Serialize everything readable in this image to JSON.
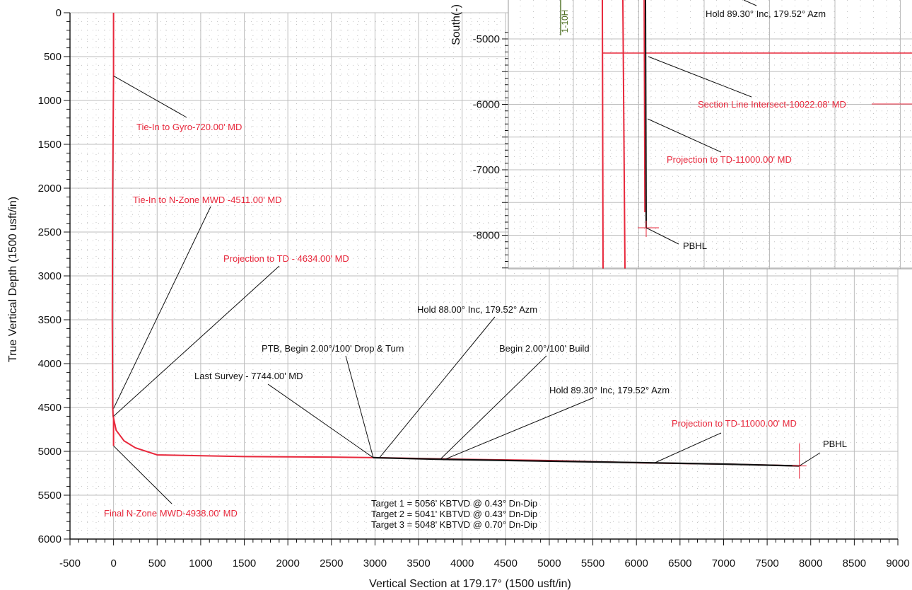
{
  "chart_data": [
    {
      "type": "line",
      "xlabel": "Vertical Section at 179.17° (1500 usft/in)",
      "ylabel": "True Vertical Depth (1500 usft/in)",
      "xlim": [
        -500,
        9000
      ],
      "ylim": [
        6000,
        0
      ],
      "x_ticks": [
        -500,
        0,
        500,
        1000,
        1500,
        2000,
        2500,
        3000,
        3500,
        4000,
        4500,
        5000,
        5500,
        6000,
        6500,
        7000,
        7500,
        8000,
        8500,
        9000
      ],
      "y_ticks": [
        0,
        500,
        1000,
        1500,
        2000,
        2500,
        3000,
        3500,
        4000,
        4500,
        5000,
        5500,
        6000
      ],
      "grid": true,
      "series": [
        {
          "color": "#e8283c",
          "points": [
            [
              0,
              0
            ],
            [
              0,
              720
            ],
            [
              -10,
              2000
            ],
            [
              -15,
              3500
            ],
            [
              -10,
              4500
            ],
            [
              -5,
              4600
            ],
            [
              30,
              4760
            ],
            [
              120,
              4880
            ],
            [
              250,
              4960
            ],
            [
              500,
              5040
            ],
            [
              1500,
              5060
            ],
            [
              2500,
              5065
            ],
            [
              3000,
              5072
            ],
            [
              4000,
              5090
            ],
            [
              5000,
              5105
            ],
            [
              6000,
              5130
            ],
            [
              7000,
              5145
            ],
            [
              7870,
              5165
            ]
          ]
        },
        {
          "color": "#e8283c",
          "points": [
            [
              0,
              4600
            ],
            [
              0,
              4938
            ]
          ]
        },
        {
          "color": "#111111",
          "points": [
            [
              2980,
              5072
            ],
            [
              3050,
              5074
            ],
            [
              3800,
              5092
            ],
            [
              5000,
              5112
            ],
            [
              6000,
              5128
            ],
            [
              7000,
              5145
            ],
            [
              7870,
              5166
            ]
          ]
        }
      ],
      "annotations": [
        {
          "text": "Tie-In to Gyro-720.00' MD",
          "color": "red",
          "target": [
            0,
            720
          ]
        },
        {
          "text": "Tie-In to N-Zone MWD -4511.00' MD",
          "color": "red",
          "target": [
            0,
            4511
          ]
        },
        {
          "text": "Projection to TD - 4634.00' MD",
          "color": "red",
          "target": [
            0,
            4600
          ]
        },
        {
          "text": "Final N-Zone MWD-4938.00' MD",
          "color": "red",
          "target": [
            0,
            4938
          ]
        },
        {
          "text": "Last Survey - 7744.00' MD",
          "color": "black",
          "target": [
            2980,
            5072
          ]
        },
        {
          "text": "PTB, Begin 2.00°/100' Drop & Turn",
          "color": "black",
          "target": [
            2980,
            5072
          ]
        },
        {
          "text": "Hold 88.00° Inc, 179.52° Azm",
          "color": "black",
          "target": [
            3050,
            5074
          ]
        },
        {
          "text": "Begin 2.00°/100' Build",
          "color": "black",
          "target": [
            3750,
            5090
          ]
        },
        {
          "text": "Hold 89.30° Inc, 179.52° Azm",
          "color": "black",
          "target": [
            3800,
            5092
          ]
        },
        {
          "text": "Projection to TD-11000.00' MD",
          "color": "red",
          "target": [
            6200,
            5135
          ]
        },
        {
          "text": "PBHL",
          "color": "black",
          "target": [
            7870,
            5166
          ]
        }
      ],
      "targets_text": [
        "Target 1 = 5056' KBTVD @ 0.43° Dn-Dip",
        "Target 2 = 5041' KBTVD @ 0.43° Dn-Dip",
        "Target 3 = 5048' KBTVD @ 0.70° Dn-Dip"
      ]
    },
    {
      "type": "line",
      "ylabel": "South(-)",
      "y_ticks": [
        -5000,
        -6000,
        -7000,
        -8000
      ],
      "grid": true,
      "well_label": "1-10H",
      "annotations": [
        {
          "text": "Hold 89.30° Inc, 179.52° Azm",
          "color": "black"
        },
        {
          "text": "Section Line Intersect-10022.08' MD",
          "color": "red"
        },
        {
          "text": "Projection to TD-11000.00' MD",
          "color": "red"
        },
        {
          "text": "PBHL",
          "color": "black"
        }
      ]
    }
  ]
}
